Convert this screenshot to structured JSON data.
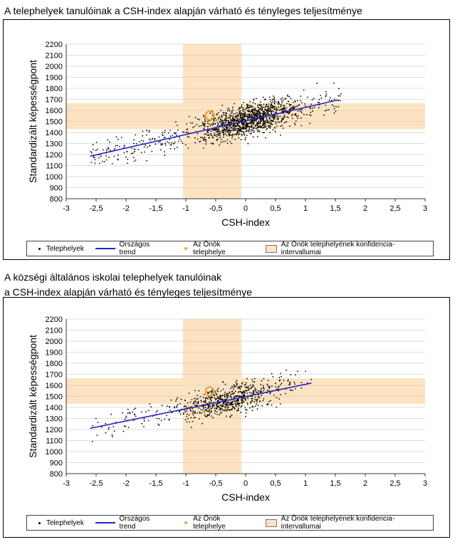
{
  "titles": {
    "chart1": "A telephelyek tanulóinak a CSH-index alapján várható és tényleges teljesítménye",
    "chart2_line1": "A községi általános iskolai telephelyek tanulóinak",
    "chart2_line2": "a CSH-index alapján várható és tényleges teljesítménye"
  },
  "legend": {
    "points": "Telephelyek",
    "trend": "Országos trend",
    "own_site": "Az Önök telephelye",
    "confidence": "Az Önök telephelyének konfidencia-intervallumai"
  },
  "colors": {
    "trend": "#2323c8",
    "own_site": "#f0a030",
    "confidence": "#fce4c2",
    "points": "#000000"
  },
  "chart_data": [
    {
      "type": "scatter",
      "title": "A telephelyek tanulóinak a CSH-index alapján várható és tényleges teljesítménye",
      "xlabel": "CSH-index",
      "ylabel": "Standardizált képességpont",
      "xlim": [
        -3,
        3
      ],
      "ylim": [
        800,
        2200
      ],
      "xticks": [
        -3,
        -2.5,
        -2,
        -1.5,
        -1,
        -0.5,
        0,
        0.5,
        1,
        1.5,
        2,
        2.5,
        3
      ],
      "xtick_labels": [
        "-3",
        "-2,5",
        "-2",
        "-1,5",
        "-1",
        "-0,5",
        "0",
        "0,5",
        "1",
        "1,5",
        "2",
        "2,5",
        "3"
      ],
      "yticks": [
        800,
        900,
        1000,
        1100,
        1200,
        1300,
        1400,
        1500,
        1600,
        1700,
        1800,
        1900,
        2000,
        2100,
        2200
      ],
      "trend": {
        "x": [
          -2.6,
          1.55
        ],
        "y": [
          1185,
          1695
        ]
      },
      "own_site": {
        "x": -0.6,
        "y": 1553
      },
      "confidence": {
        "x_range": [
          -1.05,
          -0.07
        ],
        "y_range": [
          1430,
          1665
        ]
      },
      "point_cloud": {
        "count": 1400,
        "x_range": [
          -2.6,
          1.6
        ],
        "x_center": 0.05,
        "spread": 90
      }
    },
    {
      "type": "scatter",
      "title": "A községi általános iskolai telephelyek tanulóinak a CSH-index alapján várható és tényleges teljesítménye",
      "xlabel": "CSH-index",
      "ylabel": "Standardizált képességpont",
      "xlim": [
        -3,
        3
      ],
      "ylim": [
        800,
        2200
      ],
      "xticks": [
        -3,
        -2.5,
        -2,
        -1.5,
        -1,
        -0.5,
        0,
        0.5,
        1,
        1.5,
        2,
        2.5,
        3
      ],
      "xtick_labels": [
        "-3",
        "-2,5",
        "-2",
        "-1,5",
        "-1",
        "-0,5",
        "0",
        "0,5",
        "1",
        "1,5",
        "2",
        "2,5",
        "3"
      ],
      "yticks": [
        800,
        900,
        1000,
        1100,
        1200,
        1300,
        1400,
        1500,
        1600,
        1700,
        1800,
        1900,
        2000,
        2100,
        2200
      ],
      "trend": {
        "x": [
          -2.6,
          1.1
        ],
        "y": [
          1210,
          1620
        ]
      },
      "own_site": {
        "x": -0.6,
        "y": 1545
      },
      "confidence": {
        "x_range": [
          -1.05,
          -0.07
        ],
        "y_range": [
          1430,
          1665
        ]
      },
      "point_cloud": {
        "count": 750,
        "x_range": [
          -2.6,
          1.1
        ],
        "x_center": -0.3,
        "spread": 85
      }
    }
  ]
}
